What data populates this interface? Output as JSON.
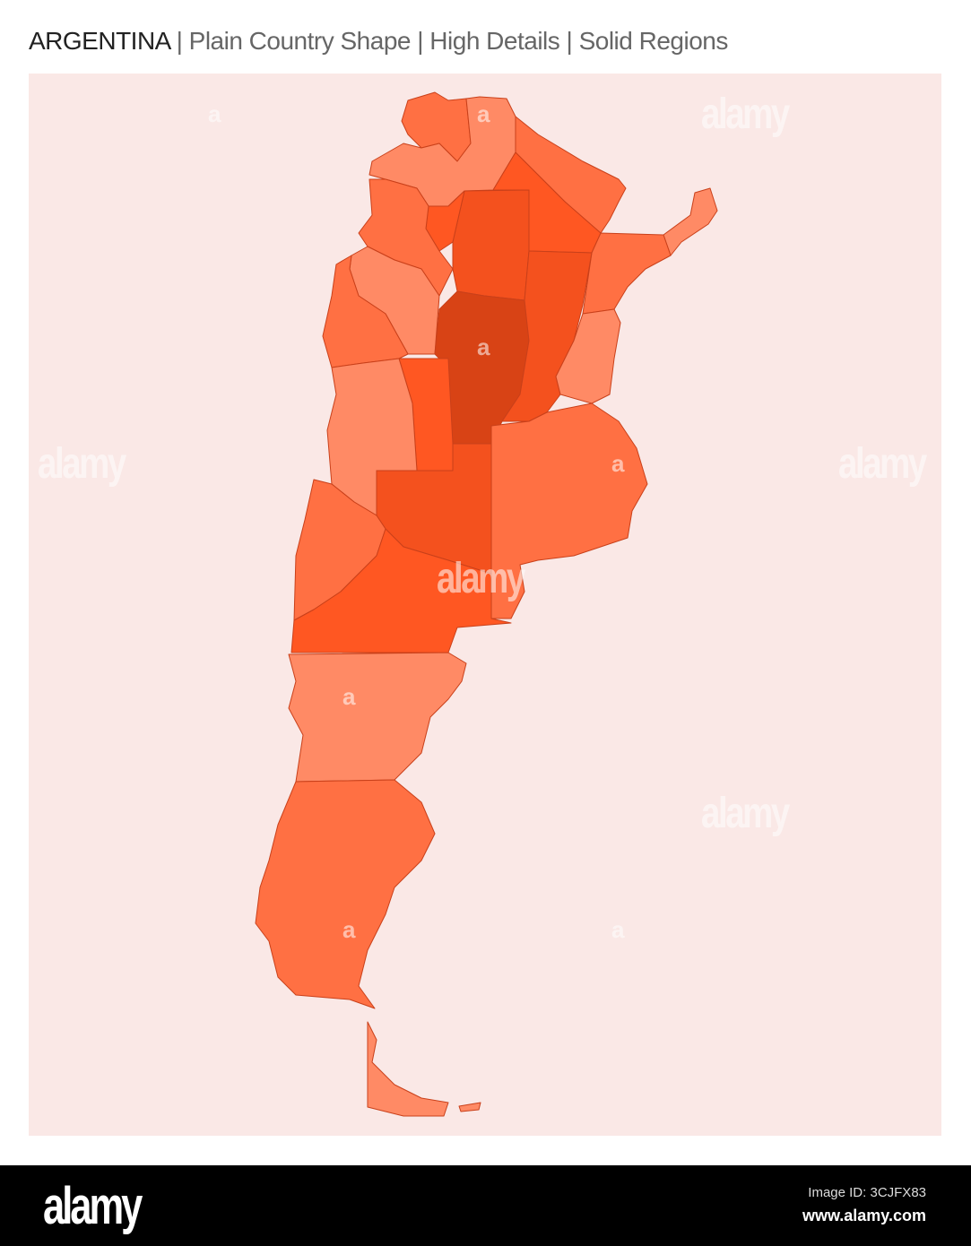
{
  "title": {
    "country": "ARGENTINA",
    "subtitle": " | Plain Country Shape | High Details | Solid Regions"
  },
  "colors": {
    "background_panel": "#FAE8E6",
    "light": "#FF8A65",
    "medium": "#FF7043",
    "strong": "#FF5722",
    "darker": "#F4511E",
    "darkest": "#D84315",
    "border": "#C9401A"
  },
  "watermark": {
    "big": "alamy",
    "small": "a"
  },
  "footer": {
    "logo": "alamy",
    "image_id": "Image ID: 3CJFX83",
    "url": "www.alamy.com"
  }
}
